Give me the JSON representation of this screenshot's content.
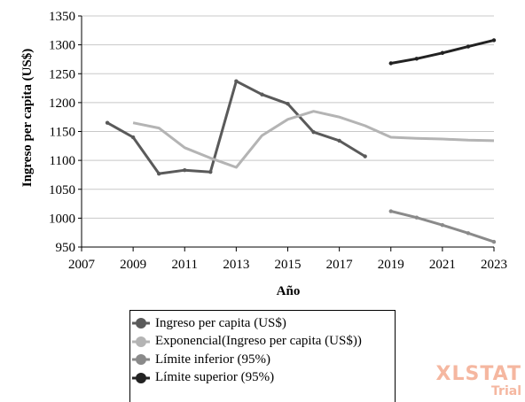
{
  "chart_data": {
    "type": "line",
    "title": "",
    "xlabel": "Año",
    "ylabel": "Ingreso per capita (US$)",
    "xlim": [
      2007,
      2023
    ],
    "ylim": [
      950,
      1350
    ],
    "x_ticks": [
      "2007",
      "2009",
      "2011",
      "2013",
      "2015",
      "2017",
      "2019",
      "2021",
      "2023"
    ],
    "y_ticks": [
      "950",
      "1000",
      "1050",
      "1100",
      "1150",
      "1200",
      "1250",
      "1300",
      "1350"
    ],
    "grid": "horizontal",
    "legend_position": "bottom",
    "series": [
      {
        "name": "Ingreso per capita (US$)",
        "color": "#5a5a5a",
        "markers": true,
        "x": [
          2008,
          2009,
          2010,
          2011,
          2012,
          2013,
          2014,
          2015,
          2016,
          2017,
          2018
        ],
        "y": [
          1165,
          1140,
          1077,
          1083,
          1080,
          1237,
          1214,
          1198,
          1149,
          1134,
          1107
        ]
      },
      {
        "name": "Exponencial(Ingreso per capita (US$))",
        "color": "#b4b4b4",
        "markers": false,
        "x": [
          2009,
          2010,
          2011,
          2012,
          2013,
          2014,
          2015,
          2016,
          2017,
          2018,
          2019,
          2020,
          2021,
          2022,
          2023
        ],
        "y": [
          1165,
          1156,
          1122,
          1104,
          1088,
          1143,
          1171,
          1185,
          1175,
          1160,
          1140,
          1138,
          1137,
          1135,
          1134
        ]
      },
      {
        "name": "Límite inferior (95%)",
        "color": "#8a8a8a",
        "markers": true,
        "x": [
          2019,
          2020,
          2021,
          2022,
          2023
        ],
        "y": [
          1012,
          1001,
          988,
          974,
          959
        ]
      },
      {
        "name": "Límite superior (95%)",
        "color": "#222222",
        "markers": true,
        "x": [
          2019,
          2020,
          2021,
          2022,
          2023
        ],
        "y": [
          1268,
          1276,
          1286,
          1297,
          1308
        ]
      }
    ]
  },
  "watermark": {
    "main": "XLSTAT",
    "sub": "Trial"
  }
}
